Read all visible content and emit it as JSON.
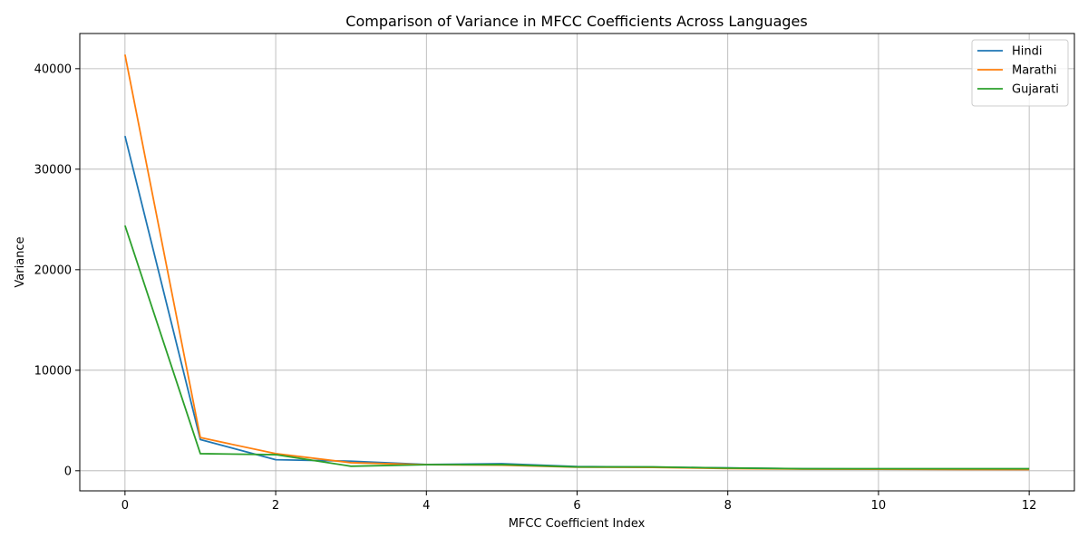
{
  "chart_data": {
    "type": "line",
    "title": "Comparison of Variance in MFCC Coefficients Across Languages",
    "xlabel": "MFCC Coefficient Index",
    "ylabel": "Variance",
    "xlim": [
      -0.6,
      12.6
    ],
    "ylim": [
      -2000,
      43500
    ],
    "xticks": [
      0,
      2,
      4,
      6,
      8,
      10,
      12
    ],
    "yticks": [
      0,
      10000,
      20000,
      30000,
      40000
    ],
    "x": [
      0,
      1,
      2,
      3,
      4,
      5,
      6,
      7,
      8,
      9,
      10,
      11,
      12
    ],
    "grid": true,
    "legend_position": "top-right",
    "series": [
      {
        "name": "Hindi",
        "color": "#1f77b4",
        "values": [
          33300,
          3100,
          1100,
          950,
          620,
          700,
          420,
          360,
          280,
          190,
          160,
          150,
          150
        ]
      },
      {
        "name": "Marathi",
        "color": "#ff7f0e",
        "values": [
          41400,
          3300,
          1700,
          800,
          600,
          560,
          360,
          330,
          220,
          170,
          150,
          130,
          120
        ]
      },
      {
        "name": "Gujarati",
        "color": "#2ca02c",
        "values": [
          24400,
          1700,
          1600,
          450,
          600,
          620,
          380,
          380,
          270,
          200,
          200,
          200,
          200
        ]
      }
    ]
  }
}
